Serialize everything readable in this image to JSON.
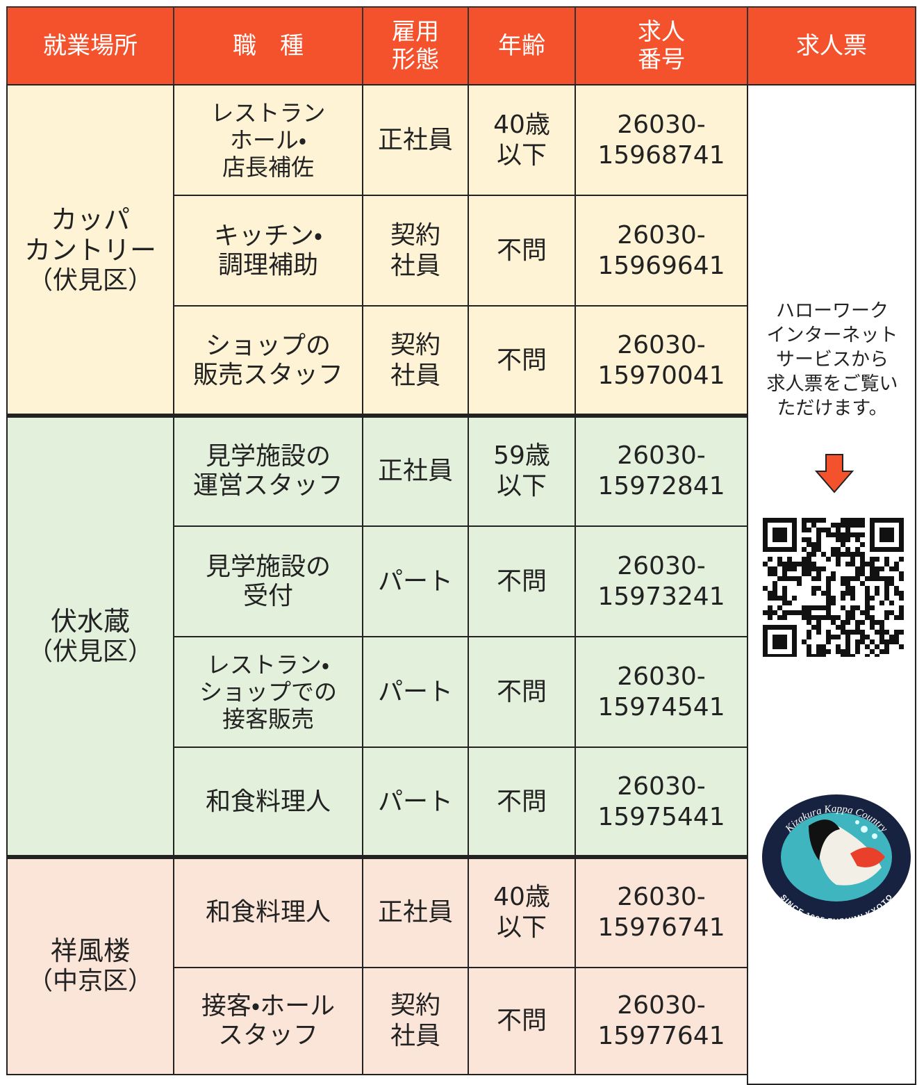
{
  "header": {
    "columns": [
      [
        "就業場所"
      ],
      [
        "職　種"
      ],
      [
        "雇用",
        "形態"
      ],
      [
        "年齢"
      ],
      [
        "求人",
        "番号"
      ],
      [
        "求人票"
      ]
    ]
  },
  "groups": [
    {
      "location": [
        "カッパ",
        "カントリー"
      ],
      "ward": "（伏見区）",
      "rows": [
        {
          "job": [
            "レストラン",
            "ホール・",
            "店長補佐"
          ],
          "employment": [
            "正社員"
          ],
          "age": [
            "40歳",
            "以下"
          ],
          "number": [
            "26030-",
            "15968741"
          ]
        },
        {
          "job": [
            "キッチン・",
            "調理補助"
          ],
          "employment": [
            "契約",
            "社員"
          ],
          "age": [
            "不問"
          ],
          "number": [
            "26030-",
            "15969641"
          ]
        },
        {
          "job": [
            "ショップの",
            "販売スタッフ"
          ],
          "employment": [
            "契約",
            "社員"
          ],
          "age": [
            "不問"
          ],
          "number": [
            "26030-",
            "15970041"
          ]
        }
      ]
    },
    {
      "location": [
        "伏水蔵"
      ],
      "ward": "（伏見区）",
      "rows": [
        {
          "job": [
            "見学施設の",
            "運営スタッフ"
          ],
          "employment": [
            "正社員"
          ],
          "age": [
            "59歳",
            "以下"
          ],
          "number": [
            "26030-",
            "15972841"
          ]
        },
        {
          "job": [
            "見学施設の",
            "受付"
          ],
          "employment": [
            "パート"
          ],
          "age": [
            "不問"
          ],
          "number": [
            "26030-",
            "15973241"
          ]
        },
        {
          "job": [
            "レストラン・",
            "ショップでの",
            "接客販売"
          ],
          "employment": [
            "パート"
          ],
          "age": [
            "不問"
          ],
          "number": [
            "26030-",
            "15974541"
          ]
        },
        {
          "job": [
            "和食料理人"
          ],
          "employment": [
            "パート"
          ],
          "age": [
            "不問"
          ],
          "number": [
            "26030-",
            "15975441"
          ]
        }
      ]
    },
    {
      "location": [
        "祥風楼"
      ],
      "ward": "（中京区）",
      "rows": [
        {
          "job": [
            "和食料理人"
          ],
          "employment": [
            "正社員"
          ],
          "age": [
            "40歳",
            "以下"
          ],
          "number": [
            "26030-",
            "15976741"
          ]
        },
        {
          "job": [
            "接客・ホール",
            "スタッフ"
          ],
          "employment": [
            "契約",
            "社員"
          ],
          "age": [
            "不問"
          ],
          "number": [
            "26030-",
            "15977641"
          ]
        }
      ]
    }
  ],
  "sidebar": {
    "note": [
      "ハローワーク",
      "インターネット",
      "サービスから",
      "求人票をご覧い",
      "ただけます。"
    ],
    "logo": {
      "top": "Kizakura Kappa Country",
      "bottom": "SINCE 1995 FUSHIMI KYOTO"
    }
  }
}
